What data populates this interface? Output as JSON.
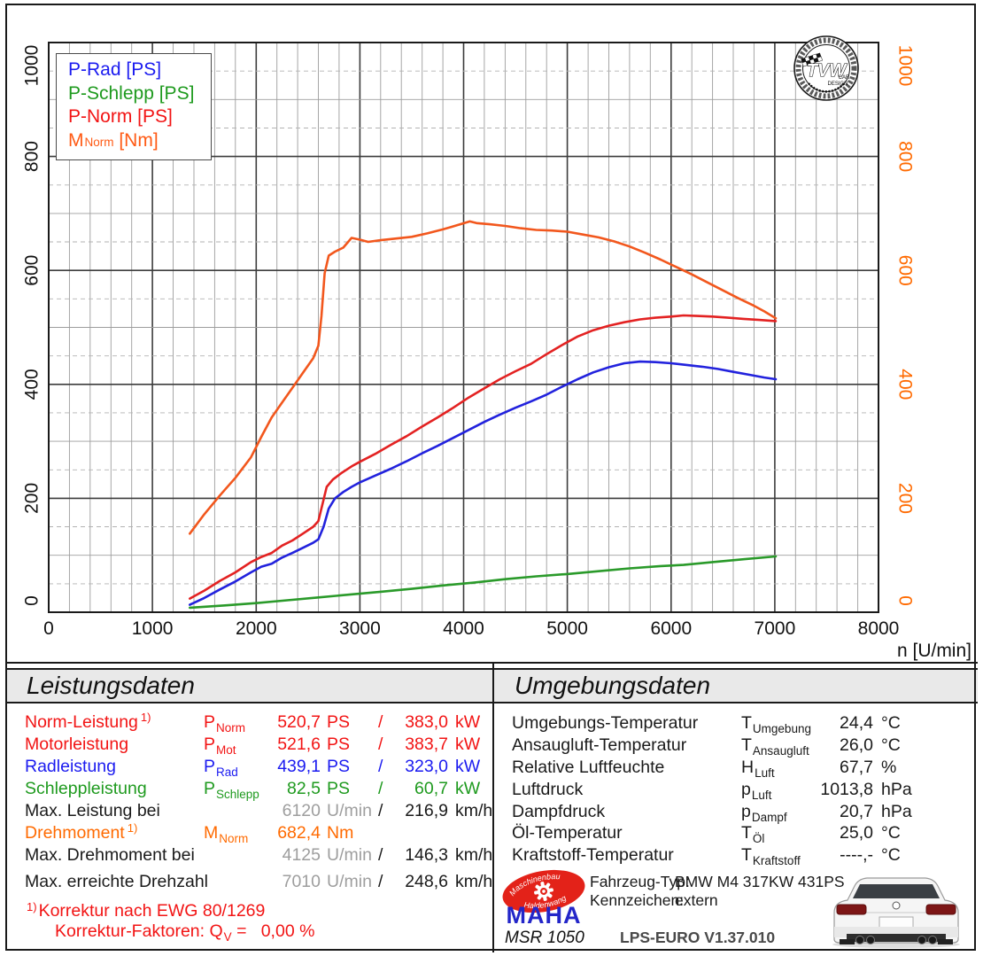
{
  "chart": {
    "x_axis_title": "n [U/min]",
    "x_ticks": [
      "0",
      "1000",
      "2000",
      "3000",
      "4000",
      "5000",
      "6000",
      "7000",
      "8000"
    ],
    "y_ticks_left": [
      "0",
      "200",
      "400",
      "600",
      "800",
      "1000"
    ],
    "y_ticks_right": [
      "0",
      "200",
      "400",
      "600",
      "800",
      "1000"
    ],
    "y_right_color": "#ff6a00",
    "legend": [
      {
        "label": "P-Rad [PS]",
        "color": "#1b1bf0"
      },
      {
        "label": "P-Schlepp [PS]",
        "color": "#1e9a1e"
      },
      {
        "label": "P-Norm [PS]",
        "color": "#f21414"
      },
      {
        "base": "M",
        "sub": "Norm",
        "rest": " [Nm]",
        "color": "#ff5a14"
      }
    ]
  },
  "chart_data": {
    "type": "line",
    "xlabel": "n [U/min]",
    "x_range": [
      0,
      8000
    ],
    "x_major_step": 1000,
    "x_minor_step": 200,
    "y_range": [
      0,
      1000
    ],
    "y_major_step": 200,
    "y_minor_step": 50,
    "grid": true,
    "legend_position": "top-left",
    "series": [
      {
        "name": "P-Schlepp [PS]",
        "key": "p-schlepp",
        "color": "#2a9a2a",
        "points": [
          [
            1360,
            8
          ],
          [
            1700,
            12
          ],
          [
            2000,
            16
          ],
          [
            2300,
            21
          ],
          [
            2600,
            26
          ],
          [
            2900,
            31
          ],
          [
            3200,
            36
          ],
          [
            3500,
            41
          ],
          [
            3800,
            47
          ],
          [
            4100,
            52
          ],
          [
            4400,
            58
          ],
          [
            4700,
            63
          ],
          [
            5000,
            67
          ],
          [
            5300,
            72
          ],
          [
            5600,
            77
          ],
          [
            5900,
            81
          ],
          [
            6120,
            83
          ],
          [
            6400,
            88
          ],
          [
            6700,
            93
          ],
          [
            7010,
            98
          ]
        ]
      },
      {
        "name": "P-Rad [PS]",
        "key": "p-rad",
        "color": "#2222dd",
        "points": [
          [
            1360,
            13
          ],
          [
            1500,
            25
          ],
          [
            1650,
            40
          ],
          [
            1800,
            54
          ],
          [
            1950,
            70
          ],
          [
            2050,
            80
          ],
          [
            2150,
            85
          ],
          [
            2250,
            96
          ],
          [
            2350,
            104
          ],
          [
            2450,
            113
          ],
          [
            2550,
            122
          ],
          [
            2600,
            128
          ],
          [
            2650,
            150
          ],
          [
            2700,
            182
          ],
          [
            2760,
            200
          ],
          [
            2840,
            211
          ],
          [
            2920,
            220
          ],
          [
            3000,
            228
          ],
          [
            3150,
            240
          ],
          [
            3300,
            252
          ],
          [
            3450,
            265
          ],
          [
            3600,
            279
          ],
          [
            3750,
            292
          ],
          [
            3900,
            306
          ],
          [
            4050,
            320
          ],
          [
            4200,
            334
          ],
          [
            4350,
            347
          ],
          [
            4500,
            359
          ],
          [
            4650,
            370
          ],
          [
            4800,
            382
          ],
          [
            4950,
            396
          ],
          [
            5100,
            409
          ],
          [
            5250,
            421
          ],
          [
            5400,
            430
          ],
          [
            5550,
            437
          ],
          [
            5700,
            440
          ],
          [
            5850,
            439
          ],
          [
            6000,
            437
          ],
          [
            6150,
            434
          ],
          [
            6300,
            431
          ],
          [
            6450,
            427
          ],
          [
            6600,
            422
          ],
          [
            6750,
            417
          ],
          [
            6900,
            412
          ],
          [
            7010,
            409
          ]
        ]
      },
      {
        "name": "P-Norm [PS]",
        "key": "p-norm",
        "color": "#e32222",
        "points": [
          [
            1360,
            24
          ],
          [
            1500,
            38
          ],
          [
            1650,
            55
          ],
          [
            1800,
            70
          ],
          [
            1950,
            88
          ],
          [
            2050,
            97
          ],
          [
            2150,
            104
          ],
          [
            2250,
            117
          ],
          [
            2350,
            126
          ],
          [
            2450,
            138
          ],
          [
            2550,
            150
          ],
          [
            2600,
            160
          ],
          [
            2640,
            190
          ],
          [
            2680,
            220
          ],
          [
            2740,
            233
          ],
          [
            2820,
            244
          ],
          [
            2920,
            256
          ],
          [
            3000,
            264
          ],
          [
            3150,
            278
          ],
          [
            3300,
            294
          ],
          [
            3450,
            309
          ],
          [
            3600,
            326
          ],
          [
            3750,
            342
          ],
          [
            3900,
            359
          ],
          [
            4050,
            377
          ],
          [
            4200,
            393
          ],
          [
            4350,
            409
          ],
          [
            4500,
            423
          ],
          [
            4650,
            436
          ],
          [
            4800,
            453
          ],
          [
            4950,
            469
          ],
          [
            5100,
            484
          ],
          [
            5250,
            495
          ],
          [
            5400,
            503
          ],
          [
            5550,
            509
          ],
          [
            5700,
            514
          ],
          [
            5850,
            517
          ],
          [
            6000,
            519
          ],
          [
            6120,
            521
          ],
          [
            6250,
            520
          ],
          [
            6400,
            519
          ],
          [
            6550,
            517
          ],
          [
            6700,
            515
          ],
          [
            6850,
            513
          ],
          [
            7010,
            511
          ]
        ]
      },
      {
        "name": "M-Norm [Nm]",
        "key": "m-norm",
        "color": "#f2571d",
        "points": [
          [
            1360,
            138
          ],
          [
            1500,
            172
          ],
          [
            1650,
            205
          ],
          [
            1800,
            236
          ],
          [
            1950,
            272
          ],
          [
            2050,
            308
          ],
          [
            2150,
            342
          ],
          [
            2250,
            368
          ],
          [
            2350,
            394
          ],
          [
            2450,
            420
          ],
          [
            2550,
            446
          ],
          [
            2600,
            468
          ],
          [
            2630,
            520
          ],
          [
            2660,
            595
          ],
          [
            2700,
            626
          ],
          [
            2760,
            633
          ],
          [
            2840,
            640
          ],
          [
            2920,
            657
          ],
          [
            3000,
            654
          ],
          [
            3080,
            650
          ],
          [
            3200,
            653
          ],
          [
            3350,
            656
          ],
          [
            3500,
            659
          ],
          [
            3650,
            665
          ],
          [
            3800,
            672
          ],
          [
            3950,
            680
          ],
          [
            4060,
            686
          ],
          [
            4125,
            683
          ],
          [
            4250,
            681
          ],
          [
            4400,
            678
          ],
          [
            4550,
            674
          ],
          [
            4700,
            671
          ],
          [
            4850,
            670
          ],
          [
            5000,
            668
          ],
          [
            5150,
            663
          ],
          [
            5300,
            658
          ],
          [
            5450,
            651
          ],
          [
            5600,
            642
          ],
          [
            5750,
            631
          ],
          [
            5900,
            619
          ],
          [
            6050,
            606
          ],
          [
            6200,
            593
          ],
          [
            6350,
            579
          ],
          [
            6500,
            565
          ],
          [
            6650,
            551
          ],
          [
            6800,
            538
          ],
          [
            6900,
            528
          ],
          [
            7010,
            516
          ]
        ]
      }
    ]
  },
  "stamp": {
    "title": "TVW",
    "sub1": "CAR",
    "sub2": "DESIGN"
  },
  "leistung": {
    "title": "Leistungsdaten",
    "rows": [
      {
        "label": "Norm-Leistung",
        "sup": "1)",
        "color": "#f21414",
        "sym_base": "P",
        "sym_sub": "Norm",
        "v1": "520,7",
        "u1": "PS",
        "slash": "/",
        "v2": "383,0",
        "u2": "kW",
        "v1_gray": false
      },
      {
        "label": "Motorleistung",
        "color": "#f21414",
        "sym_base": "P",
        "sym_sub": "Mot",
        "v1": "521,6",
        "u1": "PS",
        "slash": "/",
        "v2": "383,7",
        "u2": "kW",
        "v1_gray": false
      },
      {
        "label": "Radleistung",
        "color": "#1b1bf0",
        "sym_base": "P",
        "sym_sub": "Rad",
        "v1": "439,1",
        "u1": "PS",
        "slash": "/",
        "v2": "323,0",
        "u2": "kW",
        "v1_gray": false
      },
      {
        "label": "Schleppleistung",
        "color": "#1e9a1e",
        "sym_base": "P",
        "sym_sub": "Schlepp",
        "v1": "82,5",
        "u1": "PS",
        "slash": "/",
        "v2": "60,7",
        "u2": "kW",
        "v1_gray": false
      },
      {
        "label": "Max. Leistung bei",
        "color": "#1a1a1a",
        "v1": "6120",
        "u1": "U/min",
        "slash": "/",
        "v2": "216,9",
        "u2": "km/h",
        "v1_gray": true
      },
      {
        "label": "Drehmoment",
        "sup": "1)",
        "color": "#ff6a00",
        "sym_base": "M",
        "sym_sub": "Norm",
        "v1": "682,4",
        "u1": "Nm",
        "v1_gray": false
      },
      {
        "label": "Max. Drehmoment bei",
        "color": "#1a1a1a",
        "v1": "4125",
        "u1": "U/min",
        "slash": "/",
        "v2": "146,3",
        "u2": "km/h",
        "v1_gray": true
      },
      {
        "label": "Max. erreichte Drehzahl",
        "color": "#1a1a1a",
        "v1": "7010",
        "u1": "U/min",
        "slash": "/",
        "v2": "248,6",
        "u2": "km/h",
        "v1_gray": true
      }
    ],
    "footnote1_sup": "1)",
    "footnote1": "Korrektur nach EWG 80/1269",
    "footnote2_pre": "Korrektur-Faktoren: Q",
    "footnote2_sub": "V",
    "footnote2_post": " =   0,00 %"
  },
  "umgebung": {
    "title": "Umgebungsdaten",
    "rows": [
      {
        "label": "Umgebungs-Temperatur",
        "sym_base": "T",
        "sym_sub": "Umgebung",
        "value": "24,4",
        "unit": "°C"
      },
      {
        "label": "Ansaugluft-Temperatur",
        "sym_base": "T",
        "sym_sub": "Ansaugluft",
        "value": "26,0",
        "unit": "°C"
      },
      {
        "label": "Relative Luftfeuchte",
        "sym_base": "H",
        "sym_sub": "Luft",
        "value": "67,7",
        "unit": "%"
      },
      {
        "label": "Luftdruck",
        "sym_base": "p",
        "sym_sub": "Luft",
        "value": "1013,8",
        "unit": "hPa"
      },
      {
        "label": "Dampfdruck",
        "sym_base": "p",
        "sym_sub": "Dampf",
        "value": "20,7",
        "unit": "hPa"
      },
      {
        "label": "Öl-Temperatur",
        "sym_base": "T",
        "sym_sub": "Öl",
        "value": "25,0",
        "unit": "°C"
      },
      {
        "label": "Kraftstoff-Temperatur",
        "sym_base": "T",
        "sym_sub": "Kraftstoff",
        "value": "----,-",
        "unit": "°C"
      }
    ]
  },
  "info": {
    "maha": "MAHA",
    "maha_arc_top": "Maschinenbau",
    "maha_arc_bottom": "Haldenwang",
    "msr": "MSR 1050",
    "fahrzeug_label": "Fahrzeug-Typ:",
    "fahrzeug_value": "BMW M4 317KW 431PS",
    "kennzeichen_label": "Kennzeichen:",
    "kennzeichen_value": "extern",
    "software": "LPS-EURO V1.37.010"
  }
}
